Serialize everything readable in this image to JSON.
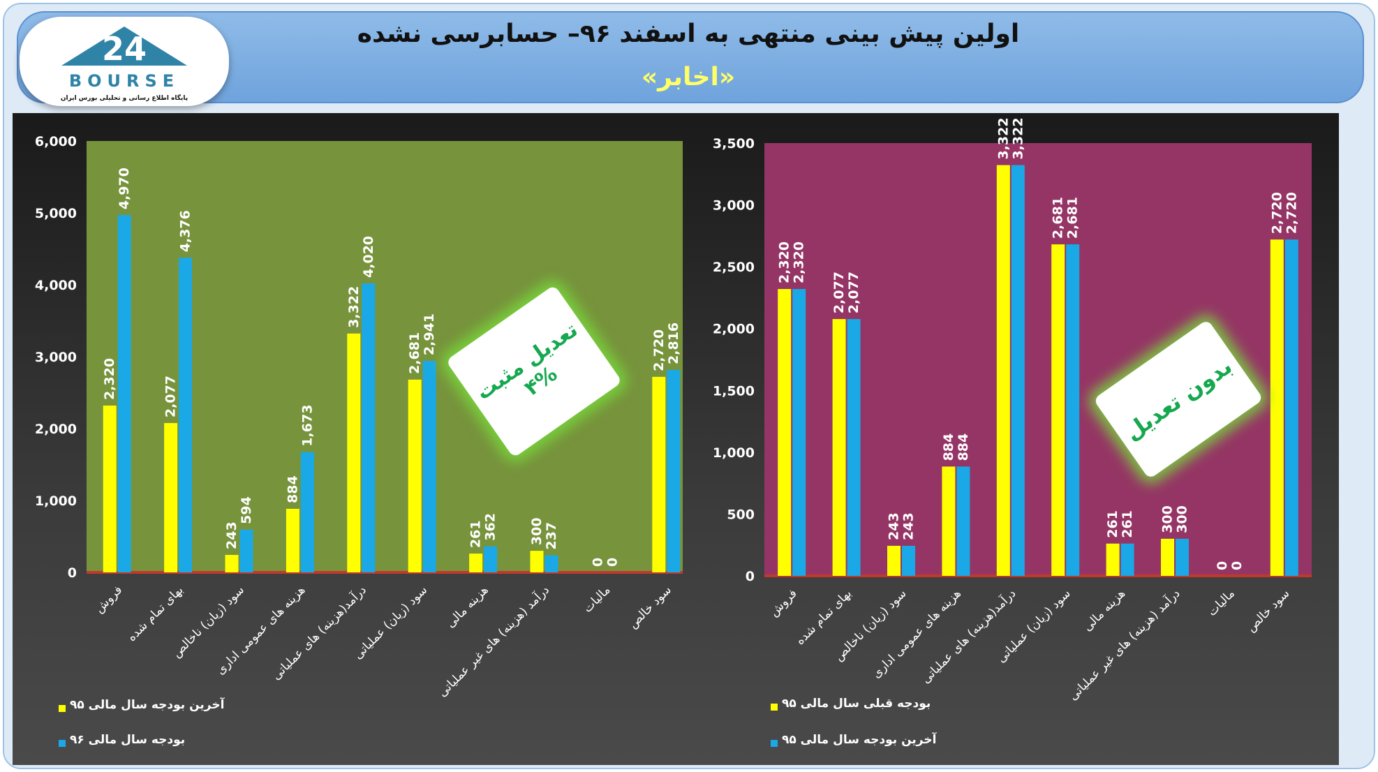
{
  "header": {
    "title": "اولین پیش بینی منتهی به اسفند ۹۶– حسابرسی نشده",
    "subtitle": "«اخابر»",
    "logo_text": "BOURSE",
    "logo_caption": "پایگاه اطلاع رسانی و تحلیلی بورس ایران"
  },
  "colors": {
    "yellow": "#ffff00",
    "blue": "#1aa9e6",
    "left_bg": "#77933c",
    "right_bg": "#953565",
    "baseline": "#c0392b"
  },
  "chart_data": [
    {
      "type": "bar",
      "categories": [
        "فروش",
        "بهای تمام شده",
        "سود (زیان) ناخالص",
        "هزینه های عمومی اداری",
        "درآمد(هزینه) های عملیاتی",
        "سود (زیان) عملیاتی",
        "هزینه مالی",
        "درآمد (هزینه) های غیر عملیاتی",
        "مالیات",
        "سود خالص"
      ],
      "series": [
        {
          "name": "آخرین بودجه سال مالی ۹۵",
          "values": [
            2320,
            2077,
            243,
            884,
            3322,
            2681,
            261,
            300,
            0,
            2720
          ],
          "labels": [
            "2,320",
            "2,077",
            "243",
            "884",
            "3,322",
            "2,681",
            "261",
            "300",
            "0",
            "2,720"
          ]
        },
        {
          "name": "بودجه سال مالی ۹۶",
          "values": [
            4970,
            4376,
            594,
            1673,
            4020,
            2941,
            362,
            237,
            0,
            2816
          ],
          "labels": [
            "4,970",
            "4,376",
            "594",
            "1,673",
            "4,020",
            "2,941",
            "362",
            "237",
            "0",
            "2,816"
          ]
        }
      ],
      "ylim": [
        0,
        6000
      ],
      "yticks": [
        "0",
        "1,000",
        "2,000",
        "3,000",
        "4,000",
        "5,000",
        "6,000"
      ],
      "badge": [
        "تعدیل مثبت",
        "۴%"
      ],
      "legend_placement": "bottom-left"
    },
    {
      "type": "bar",
      "categories": [
        "فروش",
        "بهای تمام شده",
        "سود (زیان) ناخالص",
        "هزینه های عمومی اداری",
        "درآمد(هزینه) های عملیاتی",
        "سود (زیان) عملیاتی",
        "هزینه مالی",
        "درآمد (هزینه) های غیر عملیاتی",
        "مالیات",
        "سود خالص"
      ],
      "series": [
        {
          "name": "بودجه قبلی سال مالی ۹۵",
          "values": [
            2320,
            2077,
            243,
            884,
            3322,
            2681,
            261,
            300,
            0,
            2720
          ],
          "labels": [
            "2,320",
            "2,077",
            "243",
            "884",
            "3,322",
            "2,681",
            "261",
            "300",
            "0",
            "2,720"
          ]
        },
        {
          "name": "آخرین بودجه سال مالی ۹۵",
          "values": [
            2320,
            2077,
            243,
            884,
            3322,
            2681,
            261,
            300,
            0,
            2720
          ],
          "labels": [
            "2,320",
            "2,077",
            "243",
            "884",
            "3,322",
            "2,681",
            "261",
            "300",
            "0",
            "2,720"
          ]
        }
      ],
      "ylim": [
        0,
        3500
      ],
      "yticks": [
        "0",
        "500",
        "1,000",
        "1,500",
        "2,000",
        "2,500",
        "3,000",
        "3,500"
      ],
      "badge": [
        "بدون تعدیل"
      ],
      "legend_placement": "bottom-left"
    }
  ]
}
